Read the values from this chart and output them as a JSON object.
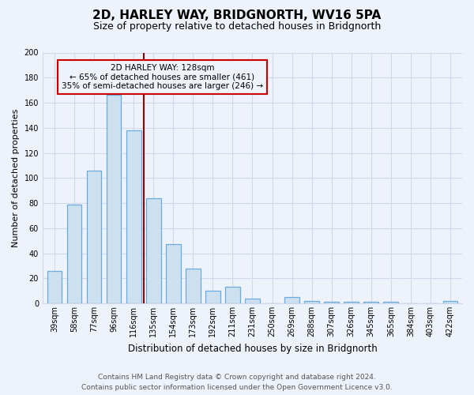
{
  "title": "2D, HARLEY WAY, BRIDGNORTH, WV16 5PA",
  "subtitle": "Size of property relative to detached houses in Bridgnorth",
  "xlabel": "Distribution of detached houses by size in Bridgnorth",
  "ylabel": "Number of detached properties",
  "bar_labels": [
    "39sqm",
    "58sqm",
    "77sqm",
    "96sqm",
    "116sqm",
    "135sqm",
    "154sqm",
    "173sqm",
    "192sqm",
    "211sqm",
    "231sqm",
    "250sqm",
    "269sqm",
    "288sqm",
    "307sqm",
    "326sqm",
    "345sqm",
    "365sqm",
    "384sqm",
    "403sqm",
    "422sqm"
  ],
  "bar_values": [
    26,
    79,
    106,
    166,
    138,
    84,
    47,
    28,
    10,
    13,
    4,
    0,
    5,
    2,
    1,
    1,
    1,
    1,
    0,
    0,
    2
  ],
  "bar_color": "#cce0f0",
  "bar_edge_color": "#6aace0",
  "ylim": [
    0,
    200
  ],
  "yticks": [
    0,
    20,
    40,
    60,
    80,
    100,
    120,
    140,
    160,
    180,
    200
  ],
  "property_label": "2D HARLEY WAY: 128sqm",
  "pct_smaller": 65,
  "count_smaller": 461,
  "pct_larger": 35,
  "count_larger": 246,
  "vline_color": "#990000",
  "annotation_box_edge": "#cc0000",
  "footer_line1": "Contains HM Land Registry data © Crown copyright and database right 2024.",
  "footer_line2": "Contains public sector information licensed under the Open Government Licence v3.0.",
  "bg_color": "#eef2fa",
  "grid_color": "#d0d8ec",
  "title_fontsize": 11,
  "subtitle_fontsize": 9,
  "ylabel_fontsize": 8,
  "xlabel_fontsize": 8.5,
  "tick_fontsize": 7,
  "annot_fontsize": 7.5,
  "footer_fontsize": 6.5
}
